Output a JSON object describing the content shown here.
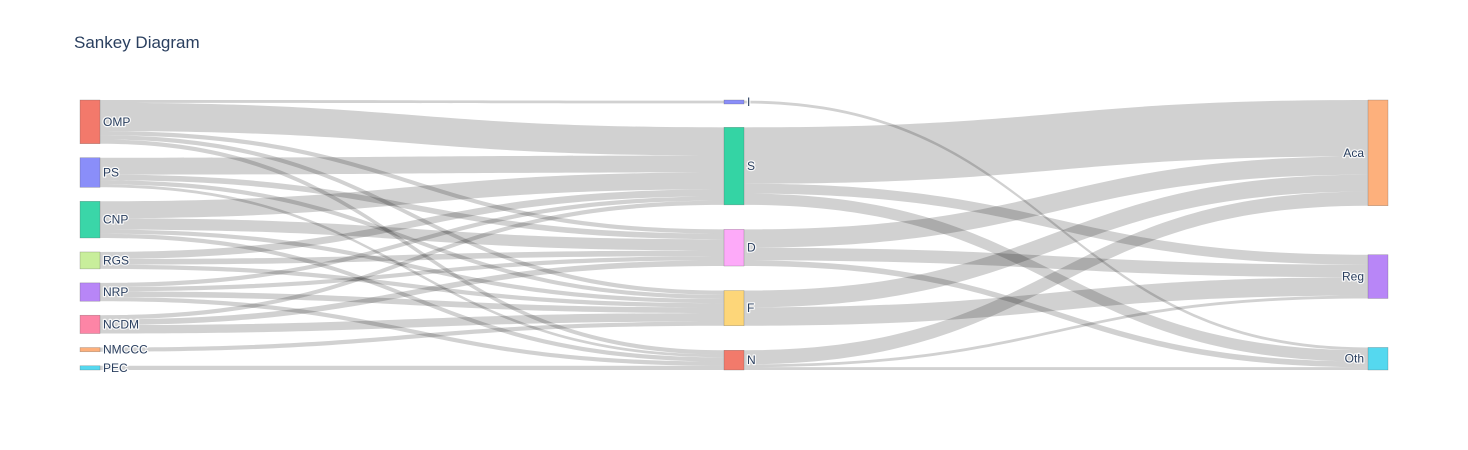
{
  "chart_data": {
    "type": "sankey",
    "title": "Sankey Diagram",
    "link_color": "#c9c9c9",
    "columns": [
      {
        "nodes": [
          {
            "id": "OMP",
            "label": "OMP",
            "color": "#f3796b"
          },
          {
            "id": "PS",
            "label": "PS",
            "color": "#8a8ef9"
          },
          {
            "id": "CNP",
            "label": "CNP",
            "color": "#3ad6a8"
          },
          {
            "id": "RGS",
            "label": "RGS",
            "color": "#c8ee9b"
          },
          {
            "id": "NRP",
            "label": "NRP",
            "color": "#b886f7"
          },
          {
            "id": "NCDM",
            "label": "NCDM",
            "color": "#fd85a6"
          },
          {
            "id": "NMCCC",
            "label": "NMCCC",
            "color": "#fdb07c"
          },
          {
            "id": "PEC",
            "label": "PEC",
            "color": "#55d8ef"
          }
        ]
      },
      {
        "nodes": [
          {
            "id": "I",
            "label": "I",
            "color": "#8a8ef9"
          },
          {
            "id": "S",
            "label": "S",
            "color": "#34d4a4"
          },
          {
            "id": "D",
            "label": "D",
            "color": "#fdaaf9"
          },
          {
            "id": "F",
            "label": "F",
            "color": "#fdd679"
          },
          {
            "id": "N",
            "label": "N",
            "color": "#f27a6b"
          }
        ]
      },
      {
        "nodes": [
          {
            "id": "Aca",
            "label": "Aca",
            "color": "#fdb07c"
          },
          {
            "id": "Reg",
            "label": "Reg",
            "color": "#b886f7"
          },
          {
            "id": "Oth",
            "label": "Oth",
            "color": "#55d8ef"
          }
        ]
      }
    ],
    "links": [
      {
        "source": "OMP",
        "target": "I",
        "value": 2
      },
      {
        "source": "OMP",
        "target": "S",
        "value": 20
      },
      {
        "source": "OMP",
        "target": "D",
        "value": 3
      },
      {
        "source": "OMP",
        "target": "F",
        "value": 3
      },
      {
        "source": "OMP",
        "target": "N",
        "value": 3
      },
      {
        "source": "PS",
        "target": "S",
        "value": 12
      },
      {
        "source": "PS",
        "target": "D",
        "value": 4
      },
      {
        "source": "PS",
        "target": "F",
        "value": 3
      },
      {
        "source": "PS",
        "target": "N",
        "value": 2
      },
      {
        "source": "CNP",
        "target": "S",
        "value": 12
      },
      {
        "source": "CNP",
        "target": "D",
        "value": 8
      },
      {
        "source": "CNP",
        "target": "F",
        "value": 3
      },
      {
        "source": "CNP",
        "target": "N",
        "value": 3
      },
      {
        "source": "RGS",
        "target": "S",
        "value": 5
      },
      {
        "source": "RGS",
        "target": "D",
        "value": 4
      },
      {
        "source": "RGS",
        "target": "F",
        "value": 3
      },
      {
        "source": "NRP",
        "target": "S",
        "value": 3
      },
      {
        "source": "NRP",
        "target": "D",
        "value": 3
      },
      {
        "source": "NRP",
        "target": "F",
        "value": 4
      },
      {
        "source": "NRP",
        "target": "N",
        "value": 3
      },
      {
        "source": "NCDM",
        "target": "S",
        "value": 3
      },
      {
        "source": "NCDM",
        "target": "D",
        "value": 4
      },
      {
        "source": "NCDM",
        "target": "F",
        "value": 6
      },
      {
        "source": "NMCCC",
        "target": "F",
        "value": 3
      },
      {
        "source": "PEC",
        "target": "N",
        "value": 3
      },
      {
        "source": "I",
        "target": "Oth",
        "value": 2
      },
      {
        "source": "S",
        "target": "Aca",
        "value": 40
      },
      {
        "source": "S",
        "target": "Reg",
        "value": 7
      },
      {
        "source": "S",
        "target": "Oth",
        "value": 8
      },
      {
        "source": "D",
        "target": "Aca",
        "value": 13
      },
      {
        "source": "D",
        "target": "Reg",
        "value": 9
      },
      {
        "source": "D",
        "target": "Oth",
        "value": 4
      },
      {
        "source": "F",
        "target": "Aca",
        "value": 12
      },
      {
        "source": "F",
        "target": "Reg",
        "value": 13
      },
      {
        "source": "N",
        "target": "Aca",
        "value": 10
      },
      {
        "source": "N",
        "target": "Reg",
        "value": 2
      },
      {
        "source": "N",
        "target": "Oth",
        "value": 2
      }
    ]
  }
}
